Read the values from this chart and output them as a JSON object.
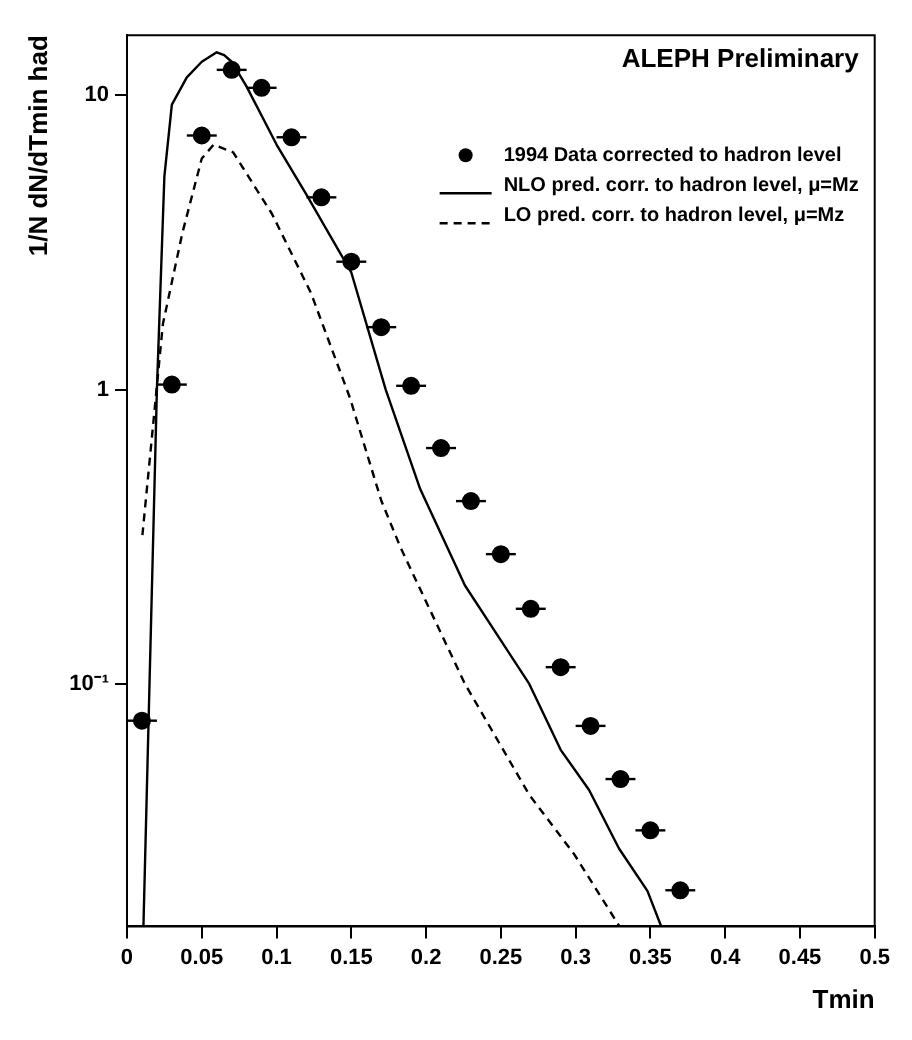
{
  "chart_data": {
    "type": "scatter",
    "annotations": [
      "ALEPH Preliminary"
    ],
    "xlabel": "Tmin",
    "ylabel": "1/N dN/dTmin had",
    "xlim": [
      0,
      0.5
    ],
    "xticks": [
      0,
      0.05,
      0.1,
      0.15,
      0.2,
      0.25,
      0.3,
      0.35,
      0.4,
      0.45,
      0.5
    ],
    "ylim": [
      0.015,
      16
    ],
    "yticks": [
      {
        "value": 0.1,
        "label": "10⁻¹"
      },
      1,
      10
    ],
    "log": "y",
    "grid": false,
    "legend": "top right",
    "series": [
      {
        "name": "1994 Data corrected to hadron level",
        "marker": "circle",
        "color": "#000000",
        "x": [
          0.01,
          0.03,
          0.05,
          0.07,
          0.09,
          0.11,
          0.13,
          0.15,
          0.17,
          0.19,
          0.21,
          0.23,
          0.25,
          0.27,
          0.29,
          0.31,
          0.33,
          0.35,
          0.37
        ],
        "values": [
          0.075,
          1.04,
          7.3,
          12.2,
          10.6,
          7.2,
          4.5,
          2.72,
          1.63,
          1.03,
          0.633,
          0.418,
          0.276,
          0.18,
          0.114,
          0.072,
          0.0475,
          0.0318,
          0.0199
        ],
        "xerrors": [
          0.01,
          0.01,
          0.01,
          0.01,
          0.01,
          0.01,
          0.01,
          0.01,
          0.01,
          0.01,
          0.01,
          0.01,
          0.01,
          0.01,
          0.01,
          0.01,
          0.01,
          0.01,
          0.01
        ]
      },
      {
        "name": "NLO pred. corr. to hadron level, μ=Mz",
        "type": "line",
        "line_style": "solid",
        "marker": "none",
        "color": "#000000",
        "x": [
          0.011,
          0.02,
          0.025,
          0.03,
          0.04,
          0.05,
          0.06,
          0.065,
          0.07,
          0.08,
          0.1,
          0.12,
          0.15,
          0.173,
          0.196,
          0.226,
          0.269,
          0.29,
          0.309,
          0.329,
          0.348,
          0.357
        ],
        "values": [
          0.0151,
          1.0,
          5.3,
          9.3,
          11.5,
          13,
          14,
          13.7,
          13,
          10.7,
          6.8,
          4.6,
          2.5,
          1.0,
          0.46,
          0.216,
          0.1,
          0.0597,
          0.0436,
          0.0276,
          0.0198,
          0.0151
        ]
      },
      {
        "name": "LO pred. corr. to hadron level, μ=Mz",
        "type": "line",
        "line_style": "dashed",
        "marker": "none",
        "color": "#000000",
        "x": [
          0.0103,
          0.024,
          0.037,
          0.05,
          0.058,
          0.071,
          0.097,
          0.123,
          0.149,
          0.17,
          0.183,
          0.226,
          0.269,
          0.299,
          0.329
        ],
        "values": [
          0.32,
          1.67,
          3.4,
          6.1,
          6.8,
          6.4,
          3.95,
          2.13,
          0.94,
          0.42,
          0.29,
          0.1,
          0.042,
          0.0264,
          0.0151
        ]
      }
    ]
  }
}
